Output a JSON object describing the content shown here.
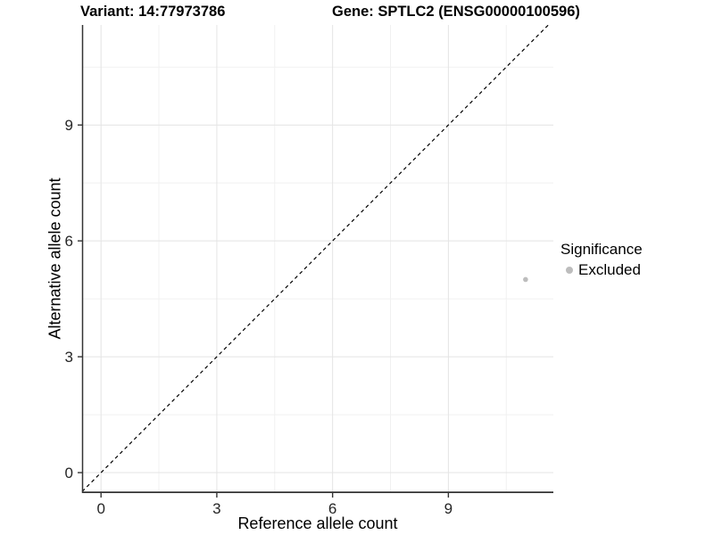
{
  "chart_data": {
    "type": "scatter",
    "title_left": "Variant: 14:77973786",
    "title_right": "Gene: SPTLC2 (ENSG00000100596)",
    "xlabel": "Reference allele count",
    "ylabel": "Alternative allele count",
    "xlim": [
      -0.49,
      11.72
    ],
    "ylim": [
      -0.53,
      11.59
    ],
    "x_major_ticks": [
      0,
      3,
      6,
      9
    ],
    "y_major_ticks": [
      0,
      3,
      6,
      9
    ],
    "x_minor_gridlines": [
      1.5,
      4.5,
      7.5,
      10.5
    ],
    "y_minor_gridlines": [
      1.5,
      4.5,
      7.5,
      10.5
    ],
    "grid": "major+minor",
    "identity_line": {
      "equation": "y = x",
      "style": "dashed",
      "color": "#000000"
    },
    "series": [
      {
        "name": "Excluded",
        "color": "#bdbdbd",
        "points": [
          {
            "x": 11,
            "y": 5
          }
        ]
      }
    ],
    "legend": {
      "title": "Significance",
      "position": "right",
      "entries": [
        {
          "label": "Excluded",
          "color": "#bdbdbd",
          "shape": "circle"
        }
      ]
    },
    "colors": {
      "background": "#ffffff",
      "point": "#bdbdbd",
      "grid_major": "#e4e4e4",
      "grid_minor": "#f1f1f1",
      "axis_line": "#333333",
      "tick_text": "#262626",
      "title_text": "#000000"
    }
  }
}
